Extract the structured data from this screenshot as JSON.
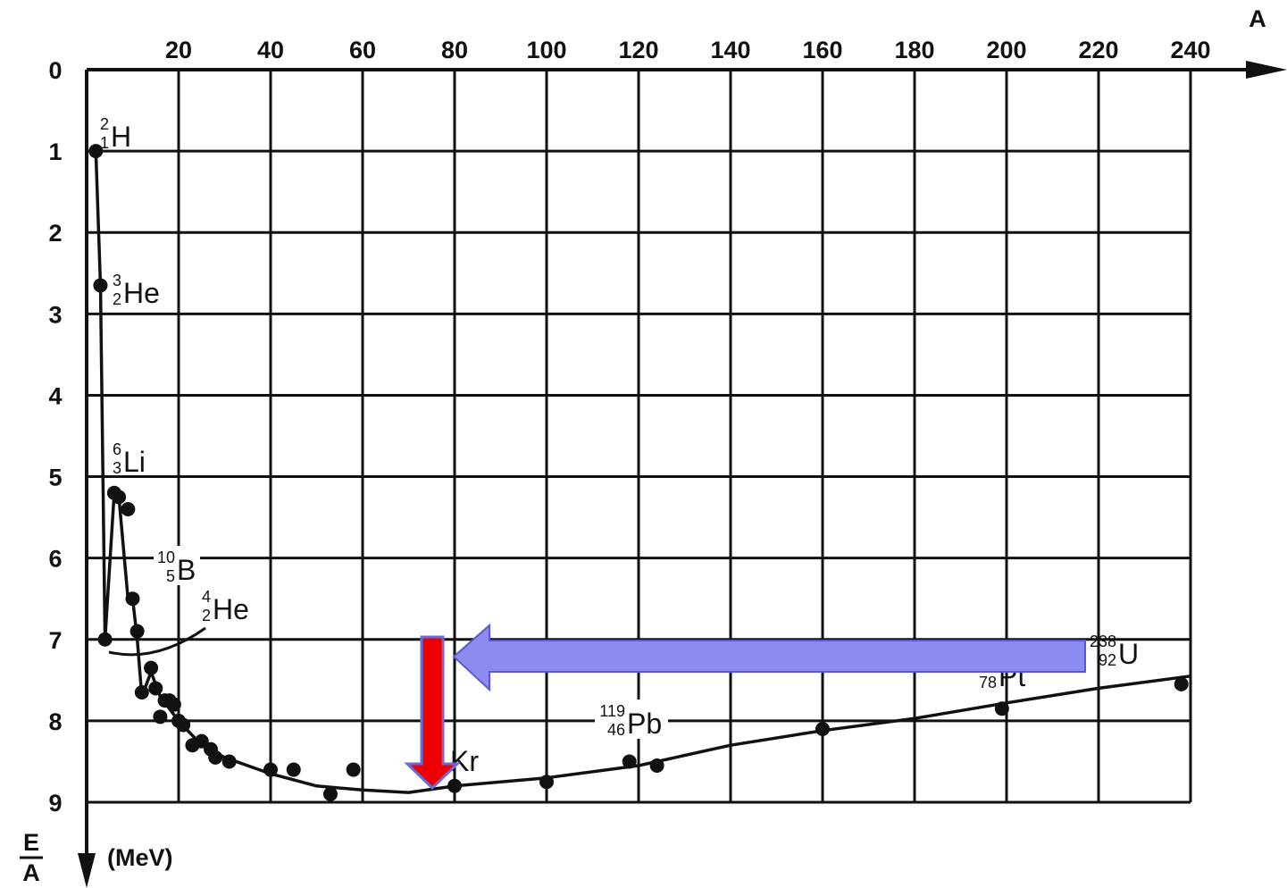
{
  "chart_data": {
    "type": "line",
    "title": "",
    "xlabel": "A",
    "ylabel_numerator": "E",
    "ylabel_denominator": "A",
    "ylabel_unit": "(MeV)",
    "xlim": [
      0,
      240
    ],
    "ylim": [
      0,
      9
    ],
    "y_axis_inverted": true,
    "grid": true,
    "x_ticks": [
      20,
      40,
      60,
      80,
      100,
      120,
      140,
      160,
      180,
      200,
      220,
      240
    ],
    "y_ticks": [
      0,
      1,
      2,
      3,
      4,
      5,
      6,
      7,
      8,
      9
    ],
    "points": [
      {
        "x": 2,
        "y": 1.0
      },
      {
        "x": 3,
        "y": 2.65
      },
      {
        "x": 4,
        "y": 7.0
      },
      {
        "x": 6,
        "y": 5.2
      },
      {
        "x": 7,
        "y": 5.25
      },
      {
        "x": 9,
        "y": 5.4
      },
      {
        "x": 10,
        "y": 6.5
      },
      {
        "x": 11,
        "y": 6.9
      },
      {
        "x": 12,
        "y": 7.65
      },
      {
        "x": 14,
        "y": 7.35
      },
      {
        "x": 15,
        "y": 7.6
      },
      {
        "x": 16,
        "y": 7.95
      },
      {
        "x": 17,
        "y": 7.75
      },
      {
        "x": 18,
        "y": 7.75
      },
      {
        "x": 19,
        "y": 7.8
      },
      {
        "x": 20,
        "y": 8.0
      },
      {
        "x": 21,
        "y": 8.05
      },
      {
        "x": 23,
        "y": 8.3
      },
      {
        "x": 25,
        "y": 8.25
      },
      {
        "x": 27,
        "y": 8.35
      },
      {
        "x": 28,
        "y": 8.45
      },
      {
        "x": 31,
        "y": 8.5
      },
      {
        "x": 40,
        "y": 8.6
      },
      {
        "x": 45,
        "y": 8.6
      },
      {
        "x": 53,
        "y": 8.9
      },
      {
        "x": 58,
        "y": 8.6
      },
      {
        "x": 80,
        "y": 8.8
      },
      {
        "x": 100,
        "y": 8.75
      },
      {
        "x": 118,
        "y": 8.5
      },
      {
        "x": 124,
        "y": 8.55
      },
      {
        "x": 160,
        "y": 8.1
      },
      {
        "x": 199,
        "y": 7.85
      },
      {
        "x": 238,
        "y": 7.55
      }
    ],
    "curve": [
      {
        "x": 2,
        "y": 1.0
      },
      {
        "x": 3,
        "y": 2.65
      },
      {
        "x": 4,
        "y": 7.0
      },
      {
        "x": 6,
        "y": 5.2
      },
      {
        "x": 7,
        "y": 5.25
      },
      {
        "x": 9,
        "y": 6.5
      },
      {
        "x": 10,
        "y": 6.5
      },
      {
        "x": 11,
        "y": 7.0
      },
      {
        "x": 12,
        "y": 7.7
      },
      {
        "x": 14,
        "y": 7.4
      },
      {
        "x": 16,
        "y": 7.7
      },
      {
        "x": 20,
        "y": 8.0
      },
      {
        "x": 25,
        "y": 8.3
      },
      {
        "x": 30,
        "y": 8.45
      },
      {
        "x": 40,
        "y": 8.65
      },
      {
        "x": 50,
        "y": 8.8
      },
      {
        "x": 60,
        "y": 8.85
      },
      {
        "x": 70,
        "y": 8.88
      },
      {
        "x": 80,
        "y": 8.8
      },
      {
        "x": 100,
        "y": 8.7
      },
      {
        "x": 120,
        "y": 8.55
      },
      {
        "x": 140,
        "y": 8.3
      },
      {
        "x": 160,
        "y": 8.12
      },
      {
        "x": 180,
        "y": 7.97
      },
      {
        "x": 200,
        "y": 7.78
      },
      {
        "x": 220,
        "y": 7.6
      },
      {
        "x": 240,
        "y": 7.45
      }
    ],
    "annotations": [
      {
        "sym": "H",
        "mass": "2",
        "charge": "1"
      },
      {
        "sym": "He",
        "mass": "3",
        "charge": "2"
      },
      {
        "sym": "Li",
        "mass": "6",
        "charge": "3"
      },
      {
        "sym": "B",
        "mass": "10",
        "charge": "5"
      },
      {
        "sym": "He",
        "mass": "4",
        "charge": "2"
      },
      {
        "sym": "Kr",
        "mass": "",
        "charge": ""
      },
      {
        "sym": "Pb",
        "mass": "119",
        "charge": "46"
      },
      {
        "sym": "Pt",
        "mass": "",
        "charge": "78"
      },
      {
        "sym": "U",
        "mass": "238",
        "charge": "92"
      }
    ],
    "overlay_arrows": [
      {
        "color": "#8B8BF0",
        "direction": "left"
      },
      {
        "color": "#EE0000",
        "direction": "down"
      }
    ]
  }
}
